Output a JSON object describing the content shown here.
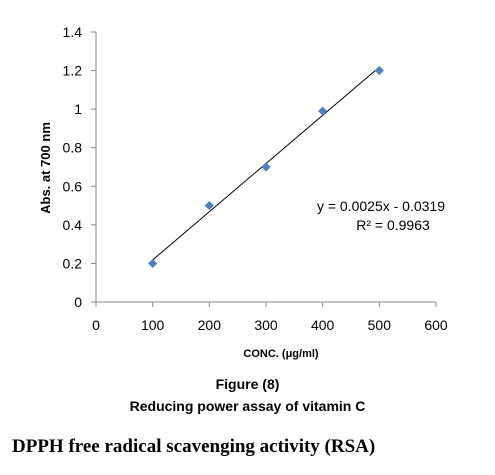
{
  "chart_data": {
    "type": "scatter",
    "x": [
      100,
      200,
      300,
      400,
      500
    ],
    "y": [
      0.2,
      0.5,
      0.7,
      0.99,
      1.2
    ],
    "xlim": [
      0,
      600
    ],
    "ylim": [
      0,
      1.4
    ],
    "x_ticks": [
      "0",
      "100",
      "200",
      "300",
      "400",
      "500",
      "600"
    ],
    "y_ticks": [
      "0",
      "0.2",
      "0.4",
      "0.6",
      "0.8",
      "1",
      "1.2",
      "1.4"
    ],
    "xlabel": "CONC. (μg/ml)",
    "ylabel": "Abs. at 700 nm",
    "trendline": {
      "slope": 0.0025,
      "intercept": -0.0319,
      "x_range": [
        100,
        500
      ]
    },
    "annotations": {
      "equation": "y = 0.0025x - 0.0319",
      "r_squared": "R² = 0.9963"
    },
    "grid": false,
    "marker_color": "#4f81bd"
  },
  "caption": {
    "figure_label": "Figure (8)",
    "title": "Reducing power assay of  vitamin C"
  },
  "section_heading": "DPPH free radical scavenging activity (RSA)"
}
